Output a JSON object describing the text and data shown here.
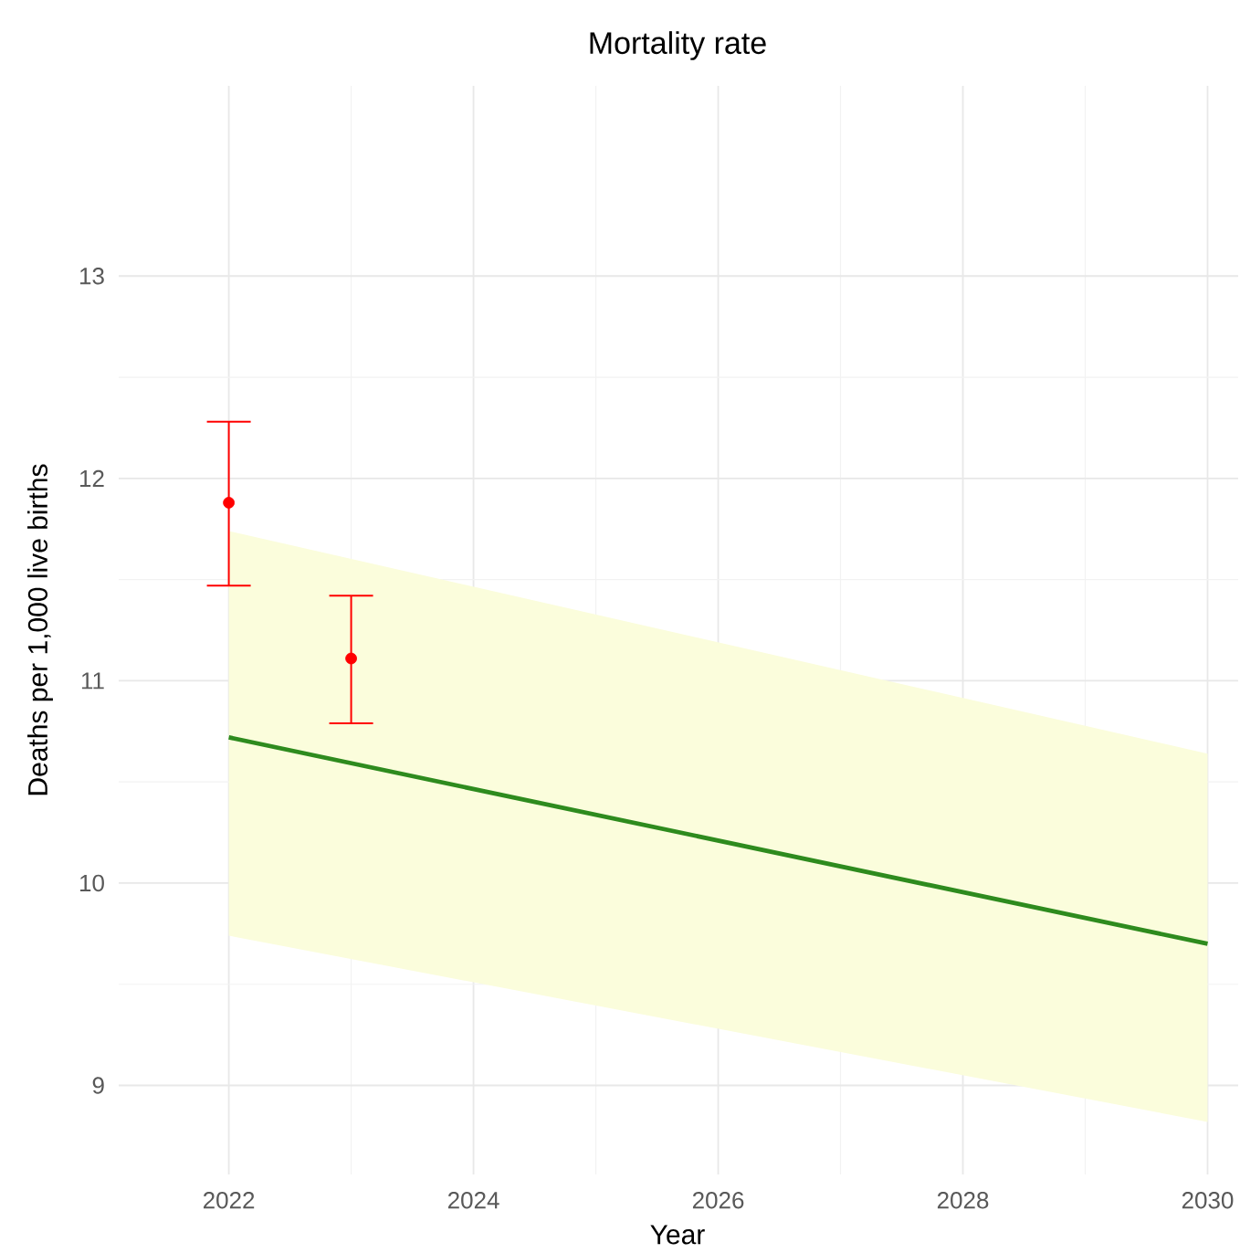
{
  "chart_data": {
    "type": "line",
    "title": "Mortality rate",
    "xlabel": "Year",
    "ylabel": "Deaths per 1,000 live births",
    "xlim": [
      2021.1,
      2030.25
    ],
    "ylim": [
      8.56,
      13.94
    ],
    "xticks": [
      2022,
      2024,
      2026,
      2028,
      2030
    ],
    "yticks": [
      9,
      10,
      11,
      12,
      13
    ],
    "grid": true,
    "series": [
      {
        "color": "#2e8b1e",
        "x": [
          2022,
          2030
        ],
        "values": [
          10.72,
          9.7
        ],
        "lower": [
          9.74,
          8.82
        ],
        "upper": [
          11.74,
          10.64
        ],
        "marker": "none",
        "line_style": "solid"
      },
      {
        "type": "scatter",
        "color": "#ff0000",
        "x": [
          2022,
          2023
        ],
        "values": [
          11.88,
          11.11
        ],
        "errors": [
          [
            11.47,
            12.28
          ],
          [
            10.79,
            11.42
          ]
        ],
        "marker": "circle"
      }
    ]
  }
}
